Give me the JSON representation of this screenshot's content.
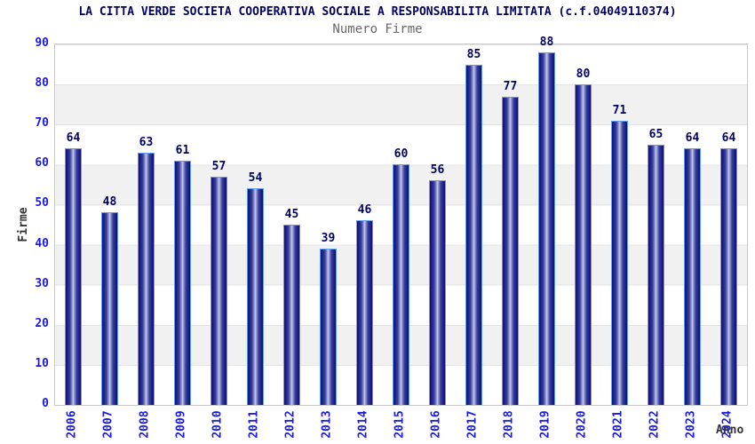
{
  "header": {
    "title": "LA CITTA VERDE SOCIETA COOPERATIVA SOCIALE A RESPONSABILITA LIMITATA (c.f.04049110374)",
    "subtitle": "Numero Firme"
  },
  "chart_data": {
    "type": "bar",
    "title": "LA CITTA VERDE SOCIETA COOPERATIVA SOCIALE A RESPONSABILITA LIMITATA (c.f.04049110374)",
    "subtitle": "Numero Firme",
    "xlabel": "Anno",
    "ylabel": "Firme",
    "categories": [
      "2006",
      "2007",
      "2008",
      "2009",
      "2010",
      "2011",
      "2012",
      "2013",
      "2014",
      "2015",
      "2016",
      "2017",
      "2018",
      "2019",
      "2020",
      "2021",
      "2022",
      "2023",
      "2024"
    ],
    "values": [
      64,
      48,
      63,
      61,
      57,
      54,
      45,
      39,
      46,
      60,
      56,
      85,
      77,
      88,
      80,
      71,
      65,
      64,
      64
    ],
    "ylim": [
      0,
      90
    ],
    "yticks": [
      0,
      10,
      20,
      30,
      40,
      50,
      60,
      70,
      80,
      90
    ],
    "grid": "horizontal-bands-alternating",
    "legend": "none",
    "value_labels": "above-bars",
    "colors": {
      "title": "#000066",
      "subtitle": "#666666",
      "tick_label": "#1a1ae6",
      "value_label": "#000066",
      "axis_title": "#333333",
      "bar_edge_dark": "#11116e",
      "bar_center_light": "#c5caee",
      "bar_outline": "#5e9ef0",
      "band_gray": "#f1f1f1",
      "plot_border": "#c9c9c9",
      "background": "#ffffff"
    }
  }
}
